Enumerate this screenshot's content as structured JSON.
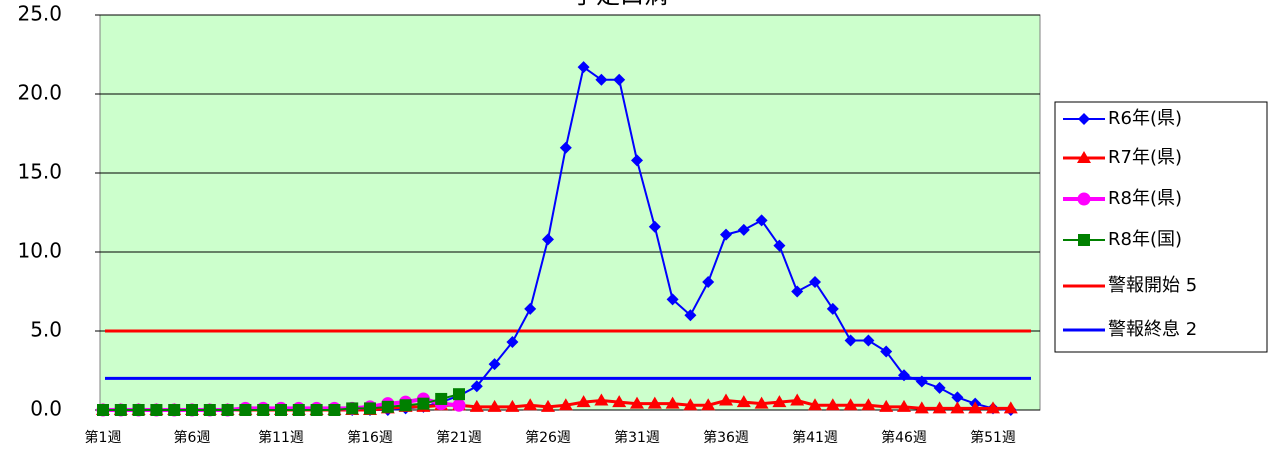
{
  "chart_data": {
    "type": "line",
    "title": "手足口病",
    "categories": [
      "第1週",
      null,
      null,
      null,
      null,
      "第6週",
      null,
      null,
      null,
      null,
      "第11週",
      null,
      null,
      null,
      null,
      "第16週",
      null,
      null,
      null,
      null,
      "第21週",
      null,
      null,
      null,
      null,
      "第26週",
      null,
      null,
      null,
      null,
      "第31週",
      null,
      null,
      null,
      null,
      "第36週",
      null,
      null,
      null,
      null,
      "第41週",
      null,
      null,
      null,
      null,
      "第46週",
      null,
      null,
      null,
      null,
      "第51週",
      null
    ],
    "series": [
      {
        "name": "R6年(県)",
        "color": "#0000ff",
        "marker": "diamond",
        "values": [
          0.0,
          0.0,
          0.0,
          0.0,
          0.0,
          0.0,
          0.0,
          0.0,
          0.0,
          0.0,
          0.0,
          0.0,
          0.0,
          0.0,
          0.0,
          0.0,
          0.0,
          0.1,
          0.2,
          0.5,
          0.9,
          1.5,
          2.9,
          4.3,
          6.4,
          10.8,
          16.6,
          21.7,
          20.9,
          20.9,
          15.8,
          11.6,
          7.0,
          6.0,
          8.1,
          11.1,
          11.4,
          12.0,
          10.4,
          7.5,
          8.1,
          6.4,
          4.4,
          4.4,
          3.7,
          2.2,
          1.8,
          1.4,
          0.8,
          0.4,
          0.1,
          0.0
        ]
      },
      {
        "name": "R7年(県)",
        "color": "#ff0000",
        "marker": "triangle",
        "values": [
          0.0,
          0.0,
          0.0,
          0.0,
          0.0,
          0.0,
          0.0,
          0.0,
          0.0,
          0.0,
          0.0,
          0.0,
          0.0,
          0.0,
          0.0,
          0.0,
          0.1,
          0.2,
          0.2,
          0.3,
          0.3,
          0.2,
          0.2,
          0.2,
          0.3,
          0.2,
          0.3,
          0.5,
          0.6,
          0.5,
          0.4,
          0.4,
          0.4,
          0.3,
          0.3,
          0.6,
          0.5,
          0.4,
          0.5,
          0.6,
          0.3,
          0.3,
          0.3,
          0.3,
          0.2,
          0.2,
          0.1,
          0.1,
          0.1,
          0.1,
          0.1,
          0.1
        ]
      },
      {
        "name": "R8年(県)",
        "color": "#ff00ff",
        "marker": "circle",
        "values": [
          0.0,
          0.0,
          0.0,
          0.0,
          0.0,
          0.0,
          0.0,
          0.0,
          0.1,
          0.1,
          0.1,
          0.1,
          0.1,
          0.1,
          0.1,
          0.2,
          0.4,
          0.5,
          0.7,
          0.4,
          0.3,
          null,
          null,
          null,
          null,
          null,
          null,
          null,
          null,
          null,
          null,
          null,
          null,
          null,
          null,
          null,
          null,
          null,
          null,
          null,
          null,
          null,
          null,
          null,
          null,
          null,
          null,
          null,
          null,
          null,
          null,
          null
        ]
      },
      {
        "name": "R8年(国)",
        "color": "#008000",
        "marker": "square",
        "values": [
          0.0,
          0.0,
          0.0,
          0.0,
          0.0,
          0.0,
          0.0,
          0.0,
          0.0,
          0.0,
          0.0,
          0.0,
          0.0,
          0.0,
          0.1,
          0.1,
          0.2,
          0.3,
          0.4,
          0.7,
          1.0,
          null,
          null,
          null,
          null,
          null,
          null,
          null,
          null,
          null,
          null,
          null,
          null,
          null,
          null,
          null,
          null,
          null,
          null,
          null,
          null,
          null,
          null,
          null,
          null,
          null,
          null,
          null,
          null,
          null,
          null,
          null
        ]
      }
    ],
    "reference_lines": [
      {
        "name": "警報開始 5",
        "value": 5,
        "color": "#ff0000"
      },
      {
        "name": "警報終息 2",
        "value": 2,
        "color": "#0000ff"
      }
    ],
    "ylim": [
      0,
      25
    ],
    "yticks": [
      {
        "value": 0,
        "label": "0.0"
      },
      {
        "value": 5,
        "label": "5.0"
      },
      {
        "value": 10,
        "label": "10.0"
      },
      {
        "value": 15,
        "label": "15.0"
      },
      {
        "value": 20,
        "label": "20.0"
      },
      {
        "value": 25,
        "label": "25.0"
      }
    ],
    "grid": true,
    "legend": "right",
    "plot_background": "#ccffcc"
  }
}
